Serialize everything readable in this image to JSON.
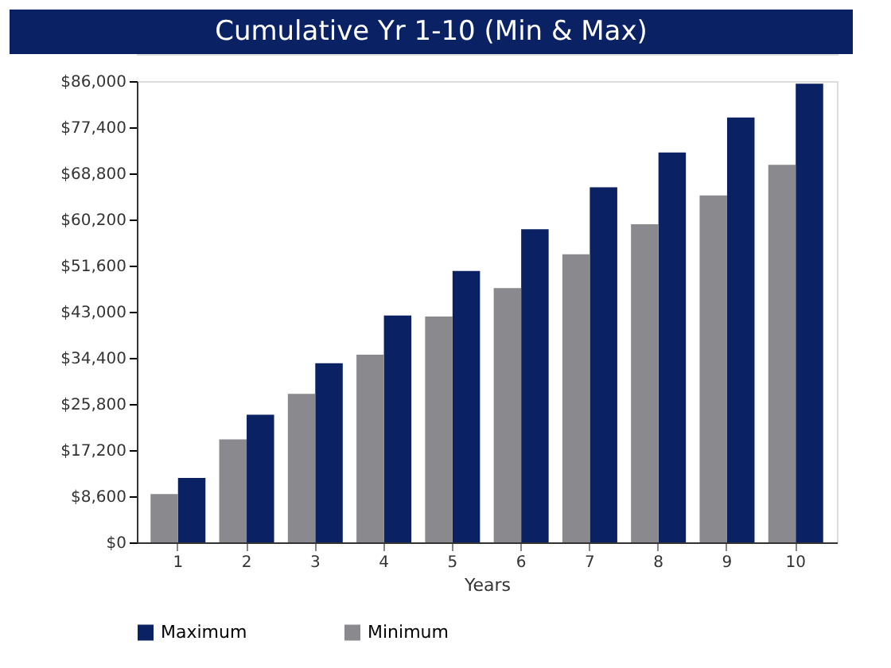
{
  "chart_data": {
    "type": "bar",
    "title": "Cumulative Yr 1-10 (Min & Max)",
    "xlabel": "Years",
    "categories": [
      "1",
      "2",
      "3",
      "4",
      "5",
      "6",
      "7",
      "8",
      "9",
      "10"
    ],
    "series": [
      {
        "name": "Maximum",
        "color": "#0a2164",
        "values": [
          12000,
          23800,
          33400,
          42300,
          50600,
          58400,
          66200,
          72700,
          79200,
          85500
        ]
      },
      {
        "name": "Minimum",
        "color": "#8a8a8e",
        "values": [
          9000,
          19200,
          27700,
          35000,
          42100,
          47400,
          53700,
          59300,
          64700,
          70400
        ]
      }
    ],
    "ylim": [
      0,
      86000
    ],
    "yticks": [
      {
        "value": 0,
        "label": "$0"
      },
      {
        "value": 8600,
        "label": "$8,600"
      },
      {
        "value": 17200,
        "label": "$17,200"
      },
      {
        "value": 25800,
        "label": "$25,800"
      },
      {
        "value": 34400,
        "label": "$34,400"
      },
      {
        "value": 43000,
        "label": "$43,000"
      },
      {
        "value": 51600,
        "label": "$51,600"
      },
      {
        "value": 60200,
        "label": "$60,200"
      },
      {
        "value": 68800,
        "label": "$68,800"
      },
      {
        "value": 77400,
        "label": "$77,400"
      },
      {
        "value": 86000,
        "label": "$86,000"
      }
    ],
    "grid": false,
    "legend": "bottom"
  }
}
